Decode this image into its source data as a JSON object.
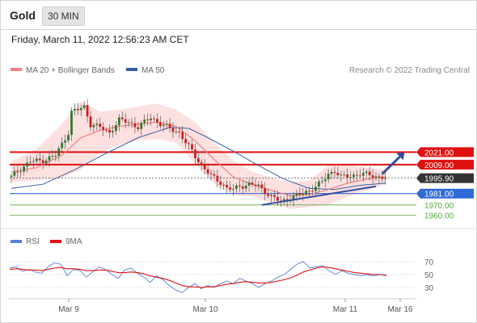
{
  "header": {
    "symbol": "Gold",
    "timeframe": "30 MIN",
    "timestamp": "Friday, March 11, 2022 12:56:23 AM CET"
  },
  "legend": {
    "ma20_label": "MA 20 + Bollinger Bands",
    "ma50_label": "MA 50",
    "credit": "Research © 2022 Trading Central",
    "rsi_label": "RSI",
    "rsi_ma_label": "9MA"
  },
  "colors": {
    "ma20": "#f08080",
    "bollinger_fill": "#fcd6d6",
    "ma50": "#3a5fa0",
    "resistance": "#e01010",
    "pivot": "#2f6ad6",
    "support": "#5aa83e",
    "last_price": "#333333",
    "candle_up": "#2c7a2c",
    "candle_down": "#d21a1a",
    "trendline": "#3050a0",
    "rsi": "#5a7fd8",
    "rsi_ma": "#e01010"
  },
  "chart_data": [
    {
      "type": "candlestick",
      "title": "Gold 30 MIN",
      "x_ticks": [
        "Mar 9",
        "Mar 10",
        "Mar 11",
        "Mar 16"
      ],
      "ylim": [
        1948,
        2090
      ],
      "levels": [
        {
          "label": "2021.00",
          "value": 2021,
          "kind": "resistance"
        },
        {
          "label": "2009.00",
          "value": 2009,
          "kind": "resistance"
        },
        {
          "label": "1995.90",
          "value": 1995.9,
          "kind": "last"
        },
        {
          "label": "1981.00",
          "value": 1981,
          "kind": "pivot"
        },
        {
          "label": "1970.00",
          "value": 1970,
          "kind": "support"
        },
        {
          "label": "1960.00",
          "value": 1960,
          "kind": "support"
        }
      ],
      "close_path": [
        [
          0,
          1997
        ],
        [
          3,
          2005
        ],
        [
          6,
          2012
        ],
        [
          10,
          2013
        ],
        [
          14,
          2018
        ],
        [
          18,
          2040
        ],
        [
          19,
          2060
        ],
        [
          21,
          2062
        ],
        [
          23,
          2065
        ],
        [
          25,
          2048
        ],
        [
          28,
          2045
        ],
        [
          31,
          2040
        ],
        [
          34,
          2052
        ],
        [
          37,
          2050
        ],
        [
          40,
          2045
        ],
        [
          44,
          2055
        ],
        [
          47,
          2048
        ],
        [
          50,
          2044
        ],
        [
          53,
          2040
        ],
        [
          55,
          2030
        ],
        [
          57,
          2022
        ],
        [
          60,
          2008
        ],
        [
          63,
          1998
        ],
        [
          66,
          1992
        ],
        [
          68,
          1986
        ],
        [
          70,
          1985
        ],
        [
          72,
          1988
        ],
        [
          75,
          1990
        ],
        [
          78,
          1988
        ],
        [
          82,
          1978
        ],
        [
          85,
          1973
        ],
        [
          88,
          1977
        ],
        [
          91,
          1980
        ],
        [
          94,
          1984
        ],
        [
          96,
          1988
        ],
        [
          98,
          1992
        ],
        [
          100,
          2000
        ],
        [
          102,
          2003
        ],
        [
          104,
          1997
        ],
        [
          107,
          1998
        ],
        [
          110,
          2000
        ],
        [
          113,
          1999
        ],
        [
          116,
          1997
        ],
        [
          118,
          1996
        ]
      ],
      "ma20": [
        [
          0,
          2002
        ],
        [
          8,
          2006
        ],
        [
          16,
          2018
        ],
        [
          22,
          2035
        ],
        [
          28,
          2042
        ],
        [
          34,
          2046
        ],
        [
          40,
          2048
        ],
        [
          46,
          2050
        ],
        [
          52,
          2046
        ],
        [
          58,
          2032
        ],
        [
          64,
          2014
        ],
        [
          70,
          1997
        ],
        [
          76,
          1990
        ],
        [
          82,
          1984
        ],
        [
          88,
          1979
        ],
        [
          94,
          1980
        ],
        [
          100,
          1985
        ],
        [
          106,
          1991
        ],
        [
          112,
          1995
        ],
        [
          118,
          1997
        ]
      ],
      "bollinger_upper": [
        [
          0,
          2012
        ],
        [
          8,
          2024
        ],
        [
          16,
          2048
        ],
        [
          22,
          2070
        ],
        [
          28,
          2060
        ],
        [
          34,
          2062
        ],
        [
          40,
          2065
        ],
        [
          46,
          2068
        ],
        [
          52,
          2062
        ],
        [
          58,
          2050
        ],
        [
          64,
          2030
        ],
        [
          70,
          2013
        ],
        [
          76,
          2002
        ],
        [
          82,
          1996
        ],
        [
          88,
          1992
        ],
        [
          94,
          1994
        ],
        [
          100,
          2008
        ],
        [
          106,
          2009
        ],
        [
          112,
          2006
        ],
        [
          118,
          2004
        ]
      ],
      "bollinger_lower": [
        [
          0,
          1992
        ],
        [
          8,
          1994
        ],
        [
          16,
          1996
        ],
        [
          22,
          2004
        ],
        [
          28,
          2020
        ],
        [
          34,
          2028
        ],
        [
          40,
          2032
        ],
        [
          46,
          2034
        ],
        [
          52,
          2030
        ],
        [
          58,
          2010
        ],
        [
          64,
          1990
        ],
        [
          70,
          1980
        ],
        [
          76,
          1978
        ],
        [
          82,
          1972
        ],
        [
          88,
          1966
        ],
        [
          94,
          1968
        ],
        [
          100,
          1970
        ],
        [
          106,
          1978
        ],
        [
          112,
          1984
        ],
        [
          118,
          1990
        ]
      ],
      "ma50": [
        [
          0,
          1986
        ],
        [
          10,
          1990
        ],
        [
          20,
          2004
        ],
        [
          30,
          2020
        ],
        [
          40,
          2035
        ],
        [
          50,
          2045
        ],
        [
          56,
          2044
        ],
        [
          62,
          2035
        ],
        [
          70,
          2022
        ],
        [
          78,
          2008
        ],
        [
          86,
          1995
        ],
        [
          94,
          1986
        ],
        [
          102,
          1985
        ],
        [
          110,
          1989
        ],
        [
          118,
          1991
        ]
      ],
      "trendline": [
        [
          79,
          1970
        ],
        [
          115,
          1988
        ]
      ],
      "projection_arrow": [
        [
          117,
          2000
        ],
        [
          124,
          2021
        ]
      ]
    },
    {
      "type": "line",
      "title": "RSI",
      "yticks": [
        70,
        50,
        30
      ],
      "ylim": [
        15,
        85
      ],
      "series": [
        {
          "name": "RSI",
          "values": [
            60,
            62,
            55,
            58,
            54,
            52,
            62,
            68,
            66,
            48,
            58,
            56,
            46,
            54,
            62,
            58,
            50,
            44,
            57,
            60,
            52,
            46,
            38,
            48,
            42,
            33,
            26,
            22,
            30,
            36,
            28,
            33,
            30,
            36,
            40,
            36,
            44,
            40,
            36,
            30,
            36,
            40,
            46,
            50,
            58,
            66,
            70,
            60,
            62,
            64,
            56,
            50,
            56,
            52,
            50,
            48,
            50,
            48,
            50,
            48
          ]
        },
        {
          "name": "9MA",
          "values": [
            58,
            59,
            58,
            57,
            57,
            56,
            58,
            60,
            61,
            59,
            59,
            58,
            56,
            56,
            57,
            57,
            55,
            53,
            53,
            54,
            53,
            51,
            48,
            46,
            44,
            41,
            37,
            33,
            31,
            31,
            30,
            31,
            31,
            33,
            35,
            36,
            38,
            39,
            38,
            37,
            37,
            38,
            40,
            42,
            45,
            49,
            54,
            57,
            60,
            62,
            61,
            59,
            57,
            55,
            53,
            52,
            51,
            50,
            50,
            49
          ]
        }
      ]
    }
  ]
}
